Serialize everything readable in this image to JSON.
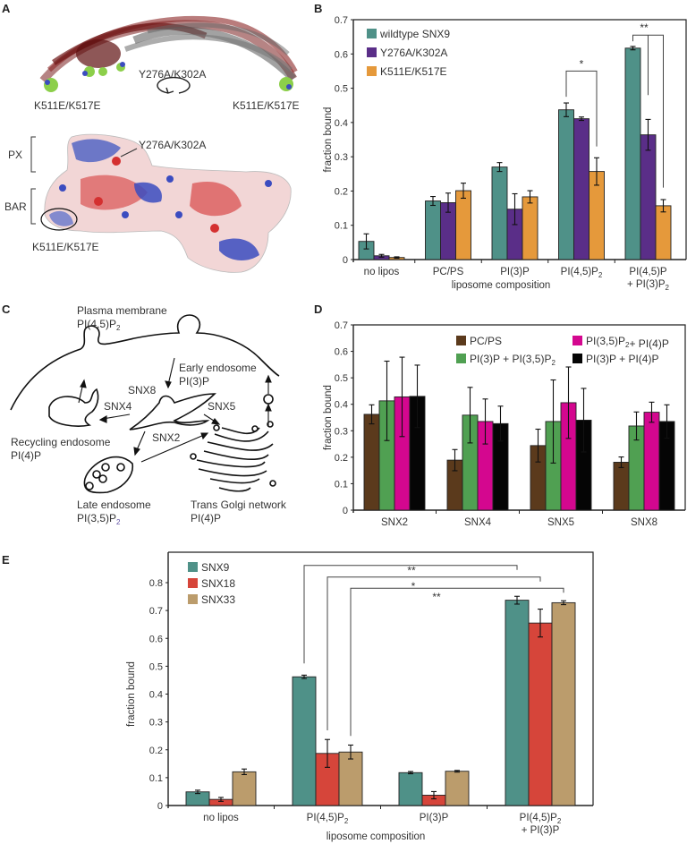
{
  "panel_letters": {
    "a": "A",
    "b": "B",
    "c": "C",
    "d": "D",
    "e": "E"
  },
  "panel_a": {
    "labels": {
      "mut_pip": "Y276A/K302A",
      "mut_bar_left": "K511E/K517E",
      "mut_bar_right": "K511E/K517E",
      "px": "PX",
      "bar": "BAR",
      "mut_pip_surface": "Y276A/K302A",
      "mut_bar_surface": "K511E/K517E"
    },
    "rotate_icon": "rotate-arrow-icon"
  },
  "panel_c": {
    "plasma_membrane": "Plasma membrane",
    "plasma_lipid": "PI(4,5)P",
    "plasma_lipid_sub": "2",
    "early_endosome": "Early endosome",
    "early_lipid": "PI(3)P",
    "recycling_endosome": "Recycling endosome",
    "recycling_lipid": "PI(4)P",
    "late_endosome": "Late endosome",
    "late_lipid": "PI(3,5)P",
    "late_lipid_sub": "2",
    "tgn": "Trans Golgi network",
    "tgn_lipid": "PI(4)P",
    "snx8": "SNX8",
    "snx4": "SNX4",
    "snx5": "SNX5",
    "snx2": "SNX2"
  },
  "chart_data": [
    {
      "id": "B",
      "type": "bar",
      "title": "",
      "xlabel": "liposome composition",
      "ylabel": "fraction bound",
      "ylim": [
        0,
        0.7
      ],
      "yticks": [
        "0",
        "0.1",
        "0.2",
        "0.3",
        "0.4",
        "0.5",
        "0.6",
        "0.7"
      ],
      "categories": [
        "no lipos",
        "PC/PS",
        "PI(3)P",
        "PI(4,5)P₂",
        "PI(4,5)P + PI(3)P₂"
      ],
      "category_lines": [
        [
          "no lipos"
        ],
        [
          "PC/PS"
        ],
        [
          "PI(3)P"
        ],
        [
          "PI(4,5)P₂"
        ],
        [
          "PI(4,5)P",
          "+ PI(3)P₂"
        ]
      ],
      "legend_position": "top-left",
      "series": [
        {
          "name": "wildtype SNX9",
          "color": "#4f9188",
          "values": [
            0.053,
            0.171,
            0.27,
            0.437,
            0.617
          ],
          "errors": [
            0.022,
            0.013,
            0.013,
            0.02,
            0.005
          ]
        },
        {
          "name": "Y276A/K302A",
          "color": "#5a2e88",
          "values": [
            0.011,
            0.166,
            0.147,
            0.411,
            0.364
          ],
          "errors": [
            0.004,
            0.028,
            0.045,
            0.005,
            0.045
          ]
        },
        {
          "name": "K511E/K517E",
          "color": "#e5993b",
          "values": [
            0.006,
            0.201,
            0.183,
            0.257,
            0.157
          ],
          "errors": [
            0.002,
            0.022,
            0.018,
            0.04,
            0.018
          ]
        }
      ],
      "annotations": [
        {
          "text": "*",
          "from": [
            3,
            0
          ],
          "to": [
            3,
            2
          ]
        },
        {
          "text": "**",
          "from": [
            4,
            0
          ],
          "to": [
            4,
            1
          ],
          "to2": [
            4,
            2
          ]
        }
      ]
    },
    {
      "id": "D",
      "type": "bar",
      "title": "",
      "xlabel": "",
      "ylabel": "fraction bound",
      "ylim": [
        0,
        0.7
      ],
      "yticks": [
        "0",
        "0.1",
        "0.2",
        "0.3",
        "0.4",
        "0.5",
        "0.6",
        "0.7"
      ],
      "categories": [
        "SNX2",
        "SNX4",
        "SNX5",
        "SNX8"
      ],
      "legend_position": "top-right",
      "series": [
        {
          "name": "PC/PS",
          "color": "#5b3a1c",
          "values": [
            0.362,
            0.189,
            0.244,
            0.181
          ],
          "errors": [
            0.036,
            0.04,
            0.062,
            0.02
          ]
        },
        {
          "name": "PI(3)P + PI(3,5)P₂",
          "color": "#50a052",
          "values": [
            0.413,
            0.359,
            0.335,
            0.318
          ],
          "errors": [
            0.15,
            0.105,
            0.157,
            0.053
          ]
        },
        {
          "name": "PI(3,5)P₂+ PI(4)P",
          "color": "#d4078f",
          "values": [
            0.428,
            0.335,
            0.406,
            0.37
          ],
          "errors": [
            0.15,
            0.085,
            0.135,
            0.038
          ]
        },
        {
          "name": "PI(3)P + PI(4)P",
          "color": "#050505",
          "values": [
            0.43,
            0.327,
            0.34,
            0.335
          ],
          "errors": [
            0.118,
            0.066,
            0.12,
            0.063
          ]
        }
      ]
    },
    {
      "id": "E",
      "type": "bar",
      "title": "",
      "xlabel": "liposome composition",
      "ylabel": "fraction bound",
      "ylim": [
        0,
        0.8
      ],
      "yticks": [
        "0",
        "0.1",
        "0.2",
        "0.3",
        "0.4",
        "0.5",
        "0.6",
        "0.7",
        "0.8"
      ],
      "categories": [
        "no lipos",
        "PI(4,5)P₂",
        "PI(3)P",
        "PI(4,5)P₂ + PI(3)P"
      ],
      "category_lines": [
        [
          "no lipos"
        ],
        [
          "PI(4,5)P₂"
        ],
        [
          "PI(3)P"
        ],
        [
          "PI(4,5)P₂",
          "+ PI(3)P"
        ]
      ],
      "legend_position": "top-left",
      "series": [
        {
          "name": "SNX9",
          "color": "#4f9188",
          "values": [
            0.049,
            0.462,
            0.118,
            0.737
          ],
          "errors": [
            0.006,
            0.006,
            0.004,
            0.014
          ]
        },
        {
          "name": "SNX18",
          "color": "#d6453a",
          "values": [
            0.022,
            0.187,
            0.037,
            0.655
          ],
          "errors": [
            0.007,
            0.05,
            0.013,
            0.05
          ]
        },
        {
          "name": "SNX33",
          "color": "#bb9c6c",
          "values": [
            0.121,
            0.192,
            0.123,
            0.728
          ],
          "errors": [
            0.01,
            0.025,
            0.003,
            0.007
          ]
        }
      ],
      "annotations": [
        {
          "text": "**",
          "series": 0
        },
        {
          "text": "*",
          "series": 1
        },
        {
          "text": "**",
          "series": 2
        }
      ]
    }
  ]
}
